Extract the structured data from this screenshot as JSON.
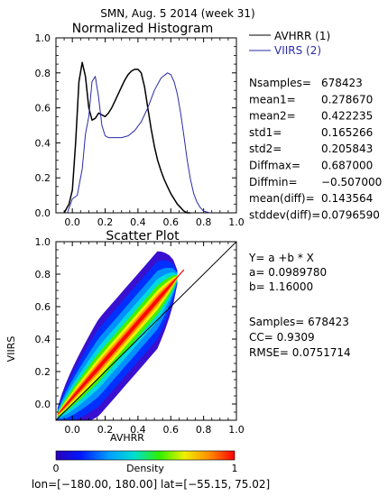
{
  "header": {
    "title": "SMN,  Aug. 5 2014 (week 31)"
  },
  "colors": {
    "avhrr": "#000000",
    "viirs": "#2a2aa8",
    "fit_line": "#ff0000",
    "identity_line": "#000000"
  },
  "footer": {
    "region": "lon=[−180.00, 180.00] lat=[−55.15, 75.02]"
  },
  "chart_data": [
    {
      "type": "line",
      "title": "Normalized Histogram",
      "xlim": [
        -0.1,
        1.0
      ],
      "ylim": [
        0.0,
        1.0
      ],
      "xticks": [
        "0.0",
        "0.2",
        "0.4",
        "0.6",
        "0.8",
        "1.0"
      ],
      "yticks": [
        "0.0",
        "0.2",
        "0.4",
        "0.6",
        "0.8",
        "1.0"
      ],
      "legend": {
        "placement": "right"
      },
      "series": [
        {
          "name": "AVHRR (1)",
          "color": "#000000",
          "x": [
            -0.05,
            -0.02,
            0.0,
            0.02,
            0.04,
            0.06,
            0.08,
            0.1,
            0.12,
            0.14,
            0.16,
            0.18,
            0.2,
            0.22,
            0.24,
            0.26,
            0.28,
            0.3,
            0.32,
            0.34,
            0.36,
            0.38,
            0.4,
            0.42,
            0.44,
            0.46,
            0.48,
            0.5,
            0.52,
            0.54,
            0.56,
            0.58,
            0.6,
            0.62,
            0.64,
            0.66,
            0.68,
            0.7,
            0.72
          ],
          "y": [
            0.0,
            0.05,
            0.13,
            0.4,
            0.75,
            0.86,
            0.78,
            0.6,
            0.53,
            0.54,
            0.57,
            0.56,
            0.55,
            0.57,
            0.6,
            0.64,
            0.68,
            0.72,
            0.76,
            0.79,
            0.81,
            0.82,
            0.82,
            0.8,
            0.72,
            0.6,
            0.48,
            0.38,
            0.3,
            0.24,
            0.19,
            0.15,
            0.11,
            0.08,
            0.05,
            0.03,
            0.01,
            0.0,
            0.0
          ]
        },
        {
          "name": "VIIRS (2)",
          "color": "#2a2aa8",
          "x": [
            -0.03,
            0.0,
            0.03,
            0.06,
            0.08,
            0.1,
            0.12,
            0.14,
            0.16,
            0.18,
            0.2,
            0.22,
            0.26,
            0.3,
            0.34,
            0.38,
            0.42,
            0.46,
            0.5,
            0.54,
            0.58,
            0.6,
            0.62,
            0.64,
            0.66,
            0.68,
            0.7,
            0.72,
            0.74,
            0.76,
            0.78,
            0.8,
            0.84
          ],
          "y": [
            0.0,
            0.08,
            0.1,
            0.25,
            0.45,
            0.55,
            0.75,
            0.78,
            0.66,
            0.5,
            0.44,
            0.43,
            0.43,
            0.43,
            0.44,
            0.47,
            0.52,
            0.6,
            0.7,
            0.77,
            0.8,
            0.79,
            0.75,
            0.68,
            0.57,
            0.44,
            0.3,
            0.19,
            0.11,
            0.06,
            0.03,
            0.01,
            0.0
          ]
        }
      ],
      "stats": [
        {
          "label": "Nsamples=",
          "value": "678423"
        },
        {
          "label": "mean1=",
          "value": "0.278670"
        },
        {
          "label": "mean2=",
          "value": "0.422235"
        },
        {
          "label": "std1=",
          "value": "0.165266"
        },
        {
          "label": "std2=",
          "value": "0.205843"
        },
        {
          "label": "Diffmax=",
          "value": "0.687000"
        },
        {
          "label": "Diffmin=",
          "value": "−0.507000"
        },
        {
          "label": "mean(diff)=",
          "value": "0.143564"
        },
        {
          "label": "stddev(diff)=",
          "value": "0.0796590"
        }
      ]
    },
    {
      "type": "heatmap",
      "title": "Scatter Plot",
      "xlabel": "AVHRR",
      "ylabel": "VIIRS",
      "xlim": [
        -0.1,
        1.0
      ],
      "ylim": [
        -0.1,
        1.0
      ],
      "xticks": [
        "0.0",
        "0.2",
        "0.4",
        "0.6",
        "0.8",
        "1.0"
      ],
      "yticks": [
        "0.0",
        "0.2",
        "0.4",
        "0.6",
        "0.8",
        "1.0"
      ],
      "fit": {
        "intercept": 0.098978,
        "slope": 1.16
      },
      "fit_text": {
        "equation": "Y= a +b * X",
        "a": "a= 0.0989780",
        "b": "b= 1.16000"
      },
      "summary": {
        "samples": "Samples= 678423",
        "cc": "CC=   0.9309",
        "rmse": "RMSE= 0.0751714"
      },
      "colorbar": {
        "label": "Density",
        "min_label": "0",
        "max_label": "1",
        "range": [
          0,
          1
        ]
      }
    }
  ]
}
